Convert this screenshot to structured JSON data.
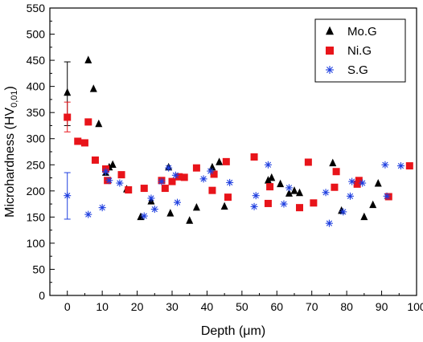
{
  "chart_data": {
    "type": "scatter",
    "xlabel": "Depth (μm)",
    "ylabel": "Microhardness (HV0,01)",
    "ylabel_main": "Microhardness (HV",
    "ylabel_sub": "0,01",
    "ylabel_close": ")",
    "xlim": [
      -5,
      100
    ],
    "ylim": [
      0,
      550
    ],
    "xticks": [
      0,
      10,
      20,
      30,
      40,
      50,
      60,
      70,
      80,
      90,
      100
    ],
    "yticks": [
      0,
      50,
      100,
      150,
      200,
      250,
      300,
      350,
      400,
      450,
      500,
      550
    ],
    "legend_position": "top-right",
    "series": [
      {
        "name": "Mo.G",
        "marker": "triangle",
        "color": "#000000",
        "x": [
          0,
          6,
          7.5,
          9,
          11,
          12,
          13,
          17,
          21,
          24,
          29,
          29.5,
          35,
          37,
          41.5,
          43.5,
          45,
          57.5,
          58.5,
          61,
          63.5,
          65,
          66.5,
          76,
          78.5,
          85,
          87.5,
          89
        ],
        "y": [
          388,
          450,
          395,
          328,
          235,
          245,
          250,
          203,
          150,
          180,
          245,
          157,
          143,
          168,
          245,
          255,
          170,
          220,
          225,
          213,
          195,
          200,
          196,
          253,
          162,
          150,
          173,
          214
        ]
      },
      {
        "name": "Ni.G",
        "marker": "square",
        "color": "#e8141a",
        "x": [
          0,
          3,
          5,
          6,
          8,
          11,
          11.5,
          15.5,
          17.5,
          22,
          27,
          28,
          30,
          32,
          33.5,
          37,
          41.5,
          42,
          45.5,
          46,
          53.5,
          57.5,
          58,
          66.5,
          69,
          70.5,
          76.5,
          77,
          83,
          83.5,
          92,
          98
        ],
        "y": [
          341,
          295,
          292,
          332,
          259,
          242,
          220,
          231,
          202,
          205,
          220,
          205,
          218,
          227,
          226,
          244,
          201,
          232,
          256,
          188,
          265,
          176,
          208,
          168,
          255,
          177,
          207,
          237,
          213,
          220,
          189,
          248
        ]
      },
      {
        "name": "S.G",
        "marker": "asterisk",
        "color": "#1f3fe0",
        "x": [
          0,
          6,
          10,
          11,
          12,
          15,
          22,
          24,
          25,
          27,
          29,
          31,
          31.5,
          39,
          41,
          46.5,
          53.5,
          54,
          57.5,
          62,
          63.5,
          74,
          75,
          79,
          81,
          81.5,
          84.5,
          91,
          91.5,
          95.5
        ],
        "y": [
          191,
          155,
          168,
          237,
          220,
          215,
          152,
          186,
          165,
          218,
          244,
          230,
          178,
          223,
          238,
          216,
          170,
          191,
          250,
          175,
          206,
          197,
          138,
          160,
          190,
          218,
          215,
          250,
          190,
          248
        ]
      }
    ],
    "error_bars": [
      {
        "series": "Mo.G",
        "x": 0,
        "y": 388,
        "lower": 325,
        "upper": 447
      },
      {
        "series": "Ni.G",
        "x": 0,
        "y": 341,
        "lower": 313,
        "upper": 370
      },
      {
        "series": "S.G",
        "x": 0,
        "y": 191,
        "lower": 146,
        "upper": 235
      }
    ]
  }
}
